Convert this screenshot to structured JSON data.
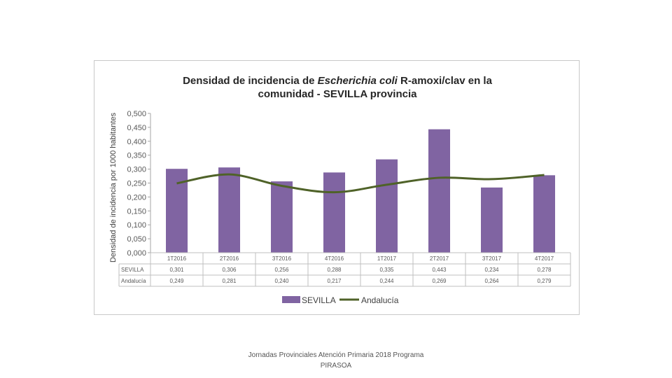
{
  "chart_data": {
    "type": "bar",
    "title_parts": [
      "Densidad de incidencia de ",
      "Escherichia coli",
      " R-amoxi/clav en la"
    ],
    "title_line2": "comunidad - SEVILLA provincia",
    "ylabel": "Densidad de incidencia por 1000 habitantes",
    "ylim": [
      0,
      0.5
    ],
    "yticks": [
      "0,000",
      "0,050",
      "0,100",
      "0,150",
      "0,200",
      "0,250",
      "0,300",
      "0,350",
      "0,400",
      "0,450",
      "0,500"
    ],
    "categories": [
      "1T2016",
      "2T2016",
      "3T2016",
      "4T2016",
      "1T2017",
      "2T2017",
      "3T2017",
      "4T2017"
    ],
    "series": [
      {
        "name": "SEVILLA",
        "type": "bar",
        "color": "#8064a2",
        "values": [
          0.301,
          0.306,
          0.256,
          0.288,
          0.335,
          0.443,
          0.234,
          0.278
        ],
        "labels": [
          "0,301",
          "0,306",
          "0,256",
          "0,288",
          "0,335",
          "0,443",
          "0,234",
          "0,278"
        ]
      },
      {
        "name": "Andalucía",
        "type": "line",
        "color": "#4f6228",
        "values": [
          0.249,
          0.281,
          0.24,
          0.217,
          0.244,
          0.269,
          0.264,
          0.279
        ],
        "labels": [
          "0,249",
          "0,281",
          "0,240",
          "0,217",
          "0,244",
          "0,269",
          "0,264",
          "0,279"
        ]
      }
    ],
    "table_row_labels": [
      "SEVILLA",
      "Andalucía"
    ],
    "legend": {
      "position": "bottom",
      "entries": [
        "SEVILLA",
        "Andalucía"
      ]
    },
    "grid": false
  },
  "footer": {
    "line1": "Jornadas Provinciales Atención Primaria 2018  Programa",
    "line2": "PIRASOA"
  }
}
